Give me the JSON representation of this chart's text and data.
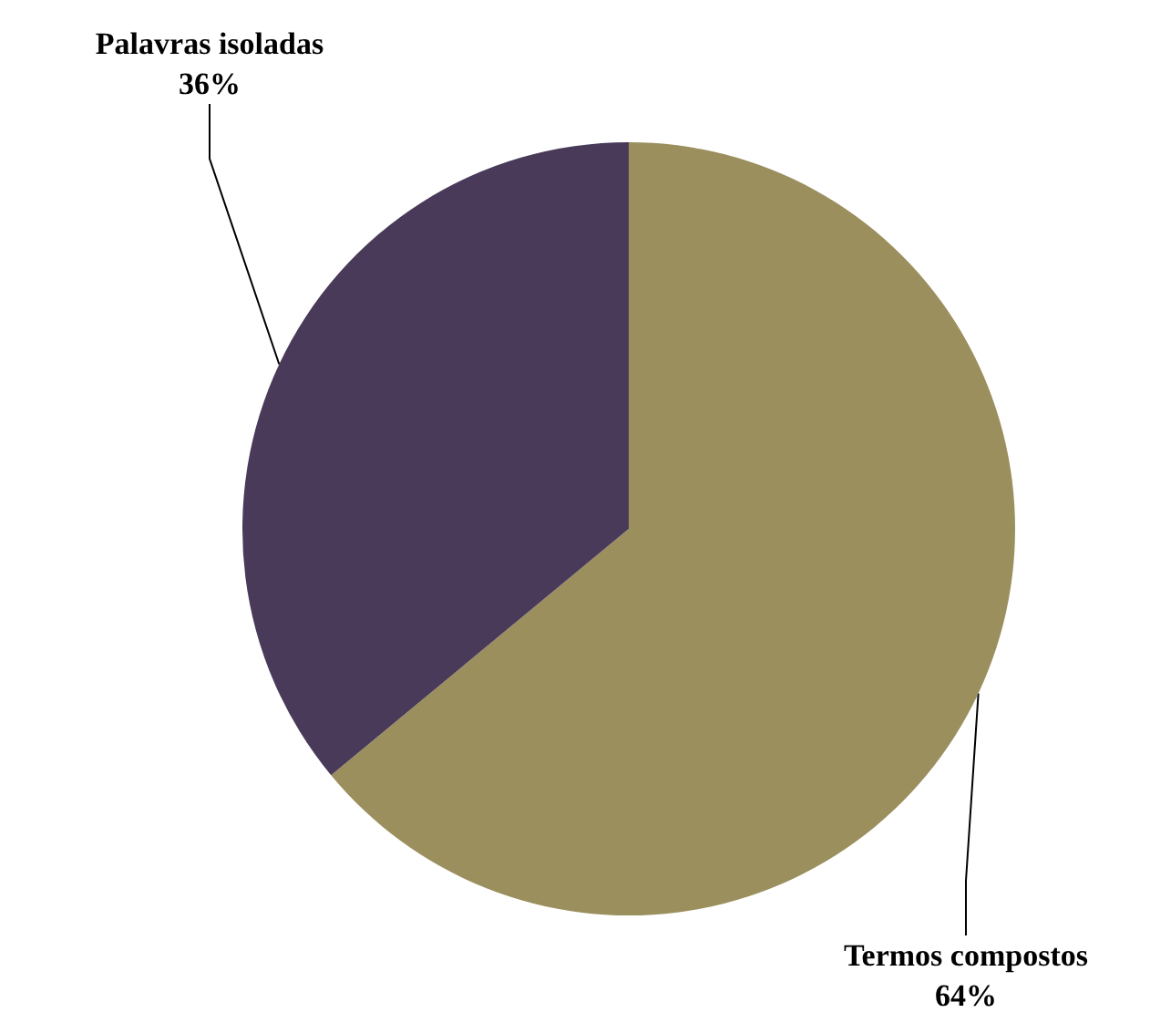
{
  "chart_data": {
    "type": "pie",
    "categories": [
      "Termos compostos",
      "Palavras isoladas"
    ],
    "values": [
      64,
      36
    ],
    "colors": [
      "#9b8f5e",
      "#4a3a5a"
    ],
    "value_labels": [
      "64%",
      "36%"
    ]
  }
}
